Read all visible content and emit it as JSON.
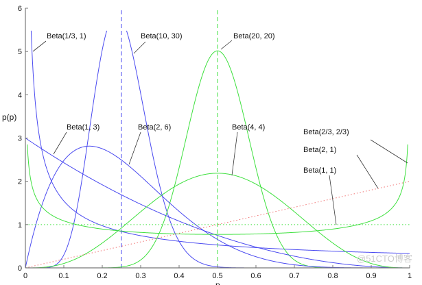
{
  "chart_data": {
    "type": "line",
    "title": "",
    "xlabel": "p",
    "ylabel": "p(p)",
    "xlim": [
      0,
      1
    ],
    "ylim": [
      0,
      6
    ],
    "xticks": [
      "0",
      "0.1",
      "0.2",
      "0.3",
      "0.4",
      "0.5",
      "0.6",
      "0.7",
      "0.8",
      "0.9",
      "1"
    ],
    "yticks": [
      "0",
      "1",
      "2",
      "3",
      "4",
      "5",
      "6"
    ],
    "grid": false,
    "series": [
      {
        "name": "Beta(1/3, 1)",
        "a": 0.3333,
        "b": 1,
        "color": "#4a4af0",
        "style": "solid"
      },
      {
        "name": "Beta(10, 30)",
        "a": 10,
        "b": 30,
        "color": "#4a4af0",
        "style": "solid"
      },
      {
        "name": "Beta(20, 20)",
        "a": 20,
        "b": 20,
        "color": "#3ee03e",
        "style": "solid"
      },
      {
        "name": "Beta(1, 3)",
        "a": 1,
        "b": 3,
        "color": "#4a4af0",
        "style": "solid"
      },
      {
        "name": "Beta(2, 6)",
        "a": 2,
        "b": 6,
        "color": "#4a4af0",
        "style": "solid"
      },
      {
        "name": "Beta(4, 4)",
        "a": 4,
        "b": 4,
        "color": "#3ee03e",
        "style": "solid"
      },
      {
        "name": "Beta(2/3, 2/3)",
        "a": 0.6667,
        "b": 0.6667,
        "color": "#3ee03e",
        "style": "solid"
      },
      {
        "name": "Beta(2, 1)",
        "a": 2,
        "b": 1,
        "color": "#f07070",
        "style": "dotted"
      },
      {
        "name": "Beta(1, 1)",
        "a": 1,
        "b": 1,
        "color": "#3ee03e",
        "style": "dotted"
      }
    ],
    "vlines": [
      {
        "x": 0.25,
        "color": "#4a4af0",
        "style": "dashed"
      },
      {
        "x": 0.5,
        "color": "#3ee03e",
        "style": "dashed"
      }
    ]
  },
  "watermark": "@51CTO博客"
}
